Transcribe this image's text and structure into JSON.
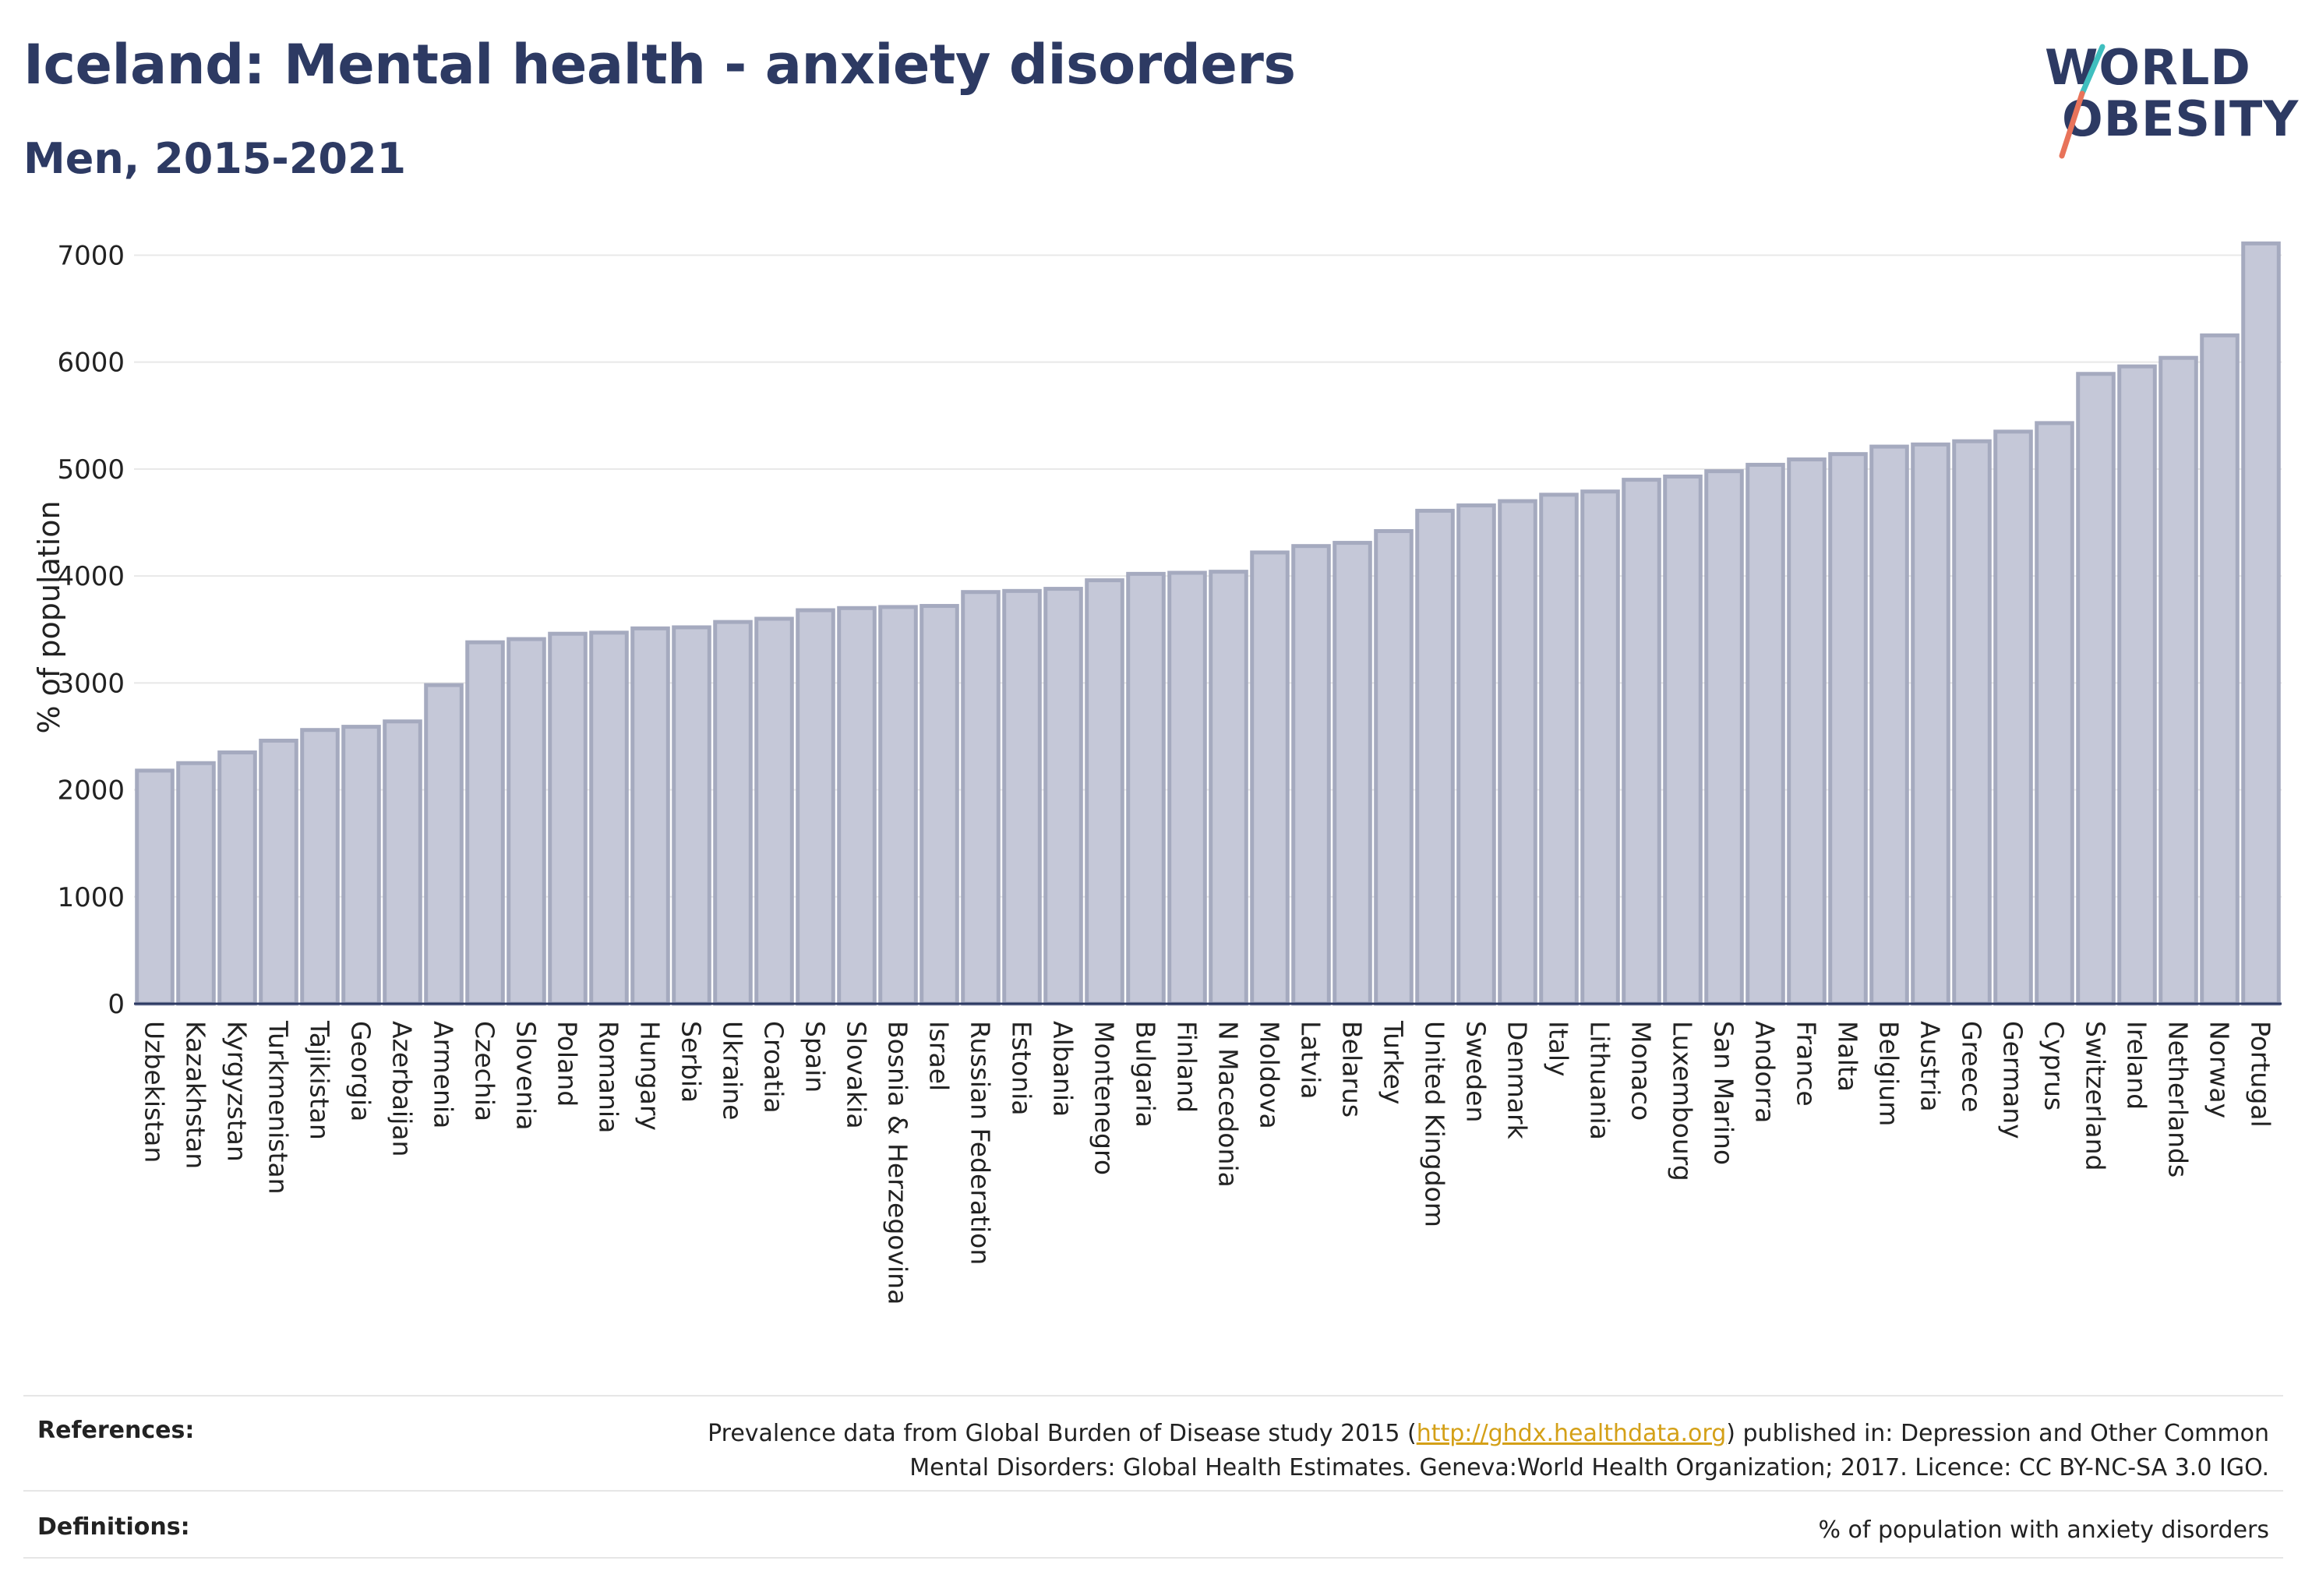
{
  "header": {
    "title": "Iceland: Mental health - anxiety disorders",
    "subtitle": "Men, 2015-2021"
  },
  "logo": {
    "line1": "WORLD",
    "line2": "OBESITY",
    "slash_colors": [
      "#3fbfbf",
      "#e8735a"
    ]
  },
  "colors": {
    "bar_fill": "#c5c8d8",
    "bar_stroke": "#a5aabf",
    "text_dark": "#2d3a63",
    "link": "#d4a017",
    "grid": "#e8e8e8"
  },
  "chart_data": {
    "type": "bar",
    "title": "Iceland: Mental health - anxiety disorders",
    "subtitle": "Men, 2015-2021",
    "xlabel": "",
    "ylabel": "% of population",
    "ylim": [
      0,
      7200
    ],
    "yticks": [
      0,
      1000,
      2000,
      3000,
      4000,
      5000,
      6000,
      7000
    ],
    "grid": true,
    "categories": [
      "Uzbekistan",
      "Kazakhstan",
      "Kyrgyzstan",
      "Turkmenistan",
      "Tajikistan",
      "Georgia",
      "Azerbaijan",
      "Armenia",
      "Czechia",
      "Slovenia",
      "Poland",
      "Romania",
      "Hungary",
      "Serbia",
      "Ukraine",
      "Croatia",
      "Spain",
      "Slovakia",
      "Bosnia & Herzegovina",
      "Israel",
      "Russian Federation",
      "Estonia",
      "Albania",
      "Montenegro",
      "Bulgaria",
      "Finland",
      "N Macedonia",
      "Moldova",
      "Latvia",
      "Belarus",
      "Turkey",
      "United Kingdom",
      "Sweden",
      "Denmark",
      "Italy",
      "Lithuania",
      "Monaco",
      "Luxembourg",
      "San Marino",
      "Andorra",
      "France",
      "Malta",
      "Belgium",
      "Austria",
      "Greece",
      "Germany",
      "Cyprus",
      "Switzerland",
      "Ireland",
      "Netherlands",
      "Norway",
      "Portugal"
    ],
    "values": [
      2180,
      2250,
      2350,
      2460,
      2560,
      2590,
      2640,
      2980,
      3380,
      3410,
      3460,
      3470,
      3510,
      3520,
      3570,
      3600,
      3680,
      3700,
      3710,
      3720,
      3850,
      3860,
      3880,
      3960,
      4020,
      4030,
      4040,
      4220,
      4280,
      4310,
      4420,
      4610,
      4660,
      4700,
      4760,
      4790,
      4900,
      4930,
      4980,
      5040,
      5090,
      5140,
      5210,
      5230,
      5260,
      5350,
      5430,
      5890,
      5960,
      6040,
      6250,
      7110
    ]
  },
  "footer": {
    "references_label": "References:",
    "references_text_before": "Prevalence data from Global Burden of Disease study 2015 (",
    "references_link": "http://ghdx.healthdata.org",
    "references_text_after": ") published in: Depression and Other Common",
    "references_line2": "Mental Disorders: Global Health Estimates. Geneva:World Health Organization; 2017. Licence: CC BY-NC-SA 3.0 IGO.",
    "definitions_label": "Definitions:",
    "definitions_text": "% of population with anxiety disorders"
  }
}
